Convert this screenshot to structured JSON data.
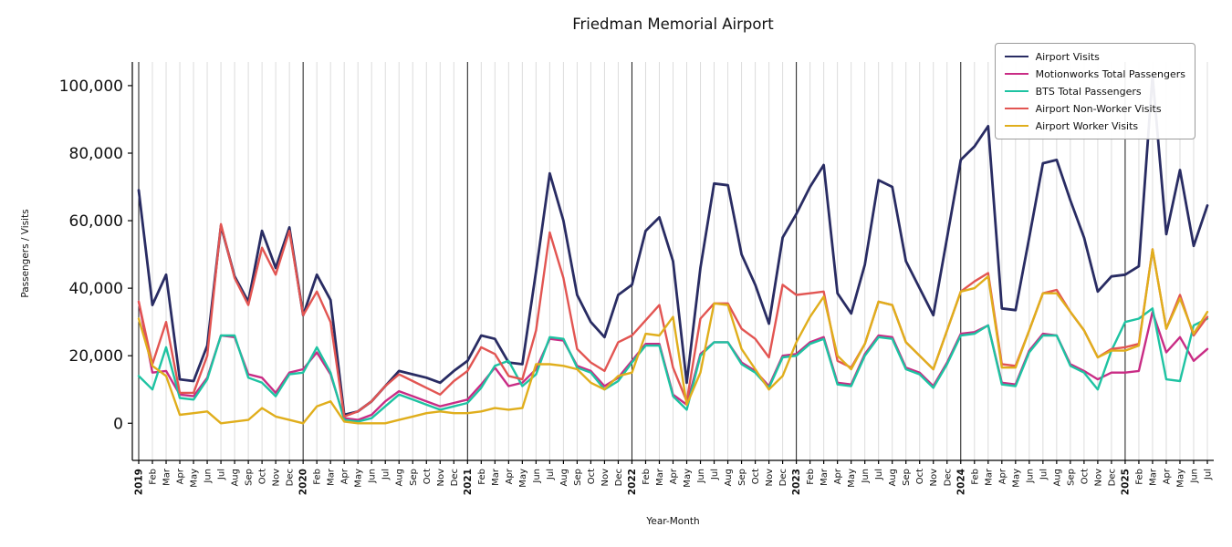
{
  "chart_data": {
    "type": "line",
    "title": "Friedman Memorial Airport",
    "xlabel": "Year-Month",
    "ylabel": "Passengers / Visits",
    "ylim": [
      -11000,
      107000
    ],
    "yticks": [
      0,
      20000,
      40000,
      60000,
      80000,
      100000
    ],
    "ytick_labels": [
      "0",
      "20,000",
      "40,000",
      "60,000",
      "80,000",
      "100,000"
    ],
    "grid": "light vertical gridline each month, dark vertical line at each January",
    "legend_position": "upper right",
    "x_labels": [
      "2019",
      "Feb",
      "Mar",
      "Apr",
      "May",
      "Jun",
      "Jul",
      "Aug",
      "Sep",
      "Oct",
      "Nov",
      "Dec",
      "2020",
      "Feb",
      "Mar",
      "Apr",
      "May",
      "Jun",
      "Jul",
      "Aug",
      "Sep",
      "Oct",
      "Nov",
      "Dec",
      "2021",
      "Feb",
      "Mar",
      "Apr",
      "May",
      "Jun",
      "Jul",
      "Aug",
      "Sep",
      "Oct",
      "Nov",
      "Dec",
      "2022",
      "Feb",
      "Mar",
      "Apr",
      "May",
      "Jun",
      "Jul",
      "Aug",
      "Sep",
      "Oct",
      "Nov",
      "Dec",
      "2023",
      "Feb",
      "Mar",
      "Apr",
      "May",
      "Jun",
      "Jul",
      "Aug",
      "Sep",
      "Oct",
      "Nov",
      "Dec",
      "2024",
      "Feb",
      "Mar",
      "Apr",
      "May",
      "Jun",
      "Jul",
      "Aug",
      "Sep",
      "Oct",
      "Nov",
      "Dec",
      "2025",
      "Feb",
      "Mar",
      "Apr",
      "May",
      "Jun",
      "Jul"
    ],
    "series": [
      {
        "name": "Airport Visits",
        "color": "#292c63",
        "width": 2.8,
        "values": [
          69000,
          35000,
          44000,
          13000,
          12500,
          23000,
          58500,
          43500,
          36000,
          57000,
          46000,
          58000,
          32000,
          44000,
          36500,
          2500,
          3500,
          6500,
          11000,
          15500,
          14500,
          13500,
          12000,
          15500,
          18500,
          26000,
          25000,
          18000,
          17500,
          45000,
          74000,
          60000,
          38000,
          30000,
          25500,
          38000,
          41000,
          57000,
          61000,
          48000,
          12000,
          46000,
          71000,
          70500,
          50000,
          41000,
          29500,
          55000,
          62000,
          70000,
          76500,
          38500,
          32500,
          47000,
          72000,
          70000,
          48000,
          40000,
          32000,
          55000,
          78000,
          82000,
          88000,
          34000,
          33500,
          55000,
          77000,
          78000,
          66000,
          55000,
          39000,
          43500,
          44000,
          46500,
          103000,
          56000,
          75000,
          52500,
          64500
        ]
      },
      {
        "name": "Motionworks Total Passengers",
        "color": "#c92c85",
        "width": 2.4,
        "values": [
          36000,
          15000,
          15500,
          8500,
          8000,
          13500,
          26000,
          25500,
          14500,
          13500,
          9000,
          15000,
          16000,
          21000,
          14500,
          1500,
          1000,
          2500,
          6500,
          9500,
          8000,
          6500,
          5000,
          6000,
          7000,
          11500,
          16500,
          11000,
          12000,
          16000,
          25000,
          24500,
          17000,
          15500,
          11000,
          13500,
          18500,
          23500,
          23500,
          8500,
          5500,
          20500,
          24000,
          24000,
          18000,
          15500,
          11000,
          20000,
          20500,
          24000,
          25500,
          12000,
          11500,
          20500,
          26000,
          25500,
          16500,
          15000,
          11000,
          18000,
          26500,
          27000,
          29000,
          12000,
          11500,
          21500,
          26500,
          26000,
          17500,
          15500,
          13000,
          15000,
          15000,
          15500,
          33000,
          21000,
          25500,
          18500,
          22000
        ]
      },
      {
        "name": "BTS Total Passengers",
        "color": "#1ec3a2",
        "width": 2.4,
        "values": [
          14000,
          10000,
          22500,
          7500,
          7000,
          13000,
          26000,
          26000,
          13500,
          12000,
          8000,
          14500,
          15000,
          22500,
          15000,
          1000,
          500,
          1500,
          5000,
          8500,
          7000,
          5500,
          4000,
          5000,
          6000,
          10500,
          17000,
          18500,
          11000,
          14500,
          25500,
          25000,
          16500,
          15000,
          10000,
          12500,
          18000,
          23000,
          23000,
          8000,
          4000,
          20000,
          24000,
          24000,
          17500,
          15000,
          10500,
          19500,
          20000,
          23500,
          25000,
          11500,
          11000,
          20000,
          25500,
          25000,
          16000,
          14500,
          10500,
          17500,
          26000,
          26500,
          29000,
          11500,
          11000,
          21000,
          26000,
          26000,
          17000,
          15000,
          10000,
          21500,
          30000,
          31000,
          34000,
          13000,
          12500,
          29000,
          31000
        ]
      },
      {
        "name": "Airport Non-Worker Visits",
        "color": "#e25552",
        "width": 2.4,
        "values": [
          36000,
          17500,
          30000,
          9000,
          9000,
          20000,
          59000,
          43000,
          35000,
          52000,
          44000,
          57000,
          32000,
          39000,
          30000,
          2000,
          3500,
          6500,
          11000,
          14500,
          12500,
          10500,
          8500,
          12500,
          15500,
          22500,
          20500,
          14000,
          13000,
          27500,
          56500,
          43000,
          22000,
          18000,
          15500,
          24000,
          26000,
          30500,
          35000,
          16500,
          6500,
          31000,
          35500,
          35500,
          28000,
          25000,
          19500,
          41000,
          38000,
          38500,
          39000,
          18500,
          16500,
          23500,
          36000,
          35000,
          24000,
          20000,
          16000,
          27500,
          39000,
          42000,
          44500,
          17500,
          17000,
          27500,
          38500,
          39500,
          33000,
          27500,
          19500,
          22000,
          22500,
          23500,
          51500,
          28000,
          38000,
          26000,
          31500
        ]
      },
      {
        "name": "Airport Worker Visits",
        "color": "#e0ae1c",
        "width": 2.4,
        "values": [
          31000,
          17000,
          14000,
          2500,
          3000,
          3500,
          0,
          500,
          1000,
          4500,
          2000,
          1000,
          0,
          5000,
          6500,
          500,
          0,
          0,
          0,
          1000,
          2000,
          3000,
          3500,
          3000,
          3000,
          3500,
          4500,
          4000,
          4500,
          17500,
          17500,
          17000,
          16000,
          12000,
          10000,
          14000,
          15000,
          26500,
          26000,
          31500,
          5500,
          15000,
          35500,
          35000,
          22000,
          16000,
          10000,
          14000,
          24000,
          31500,
          37500,
          20000,
          16000,
          23500,
          36000,
          35000,
          24000,
          20000,
          16000,
          27500,
          39000,
          40000,
          43500,
          16500,
          16500,
          27500,
          38500,
          38500,
          33000,
          27500,
          19500,
          21500,
          21500,
          23000,
          51500,
          28000,
          37000,
          26500,
          33000
        ]
      }
    ]
  }
}
